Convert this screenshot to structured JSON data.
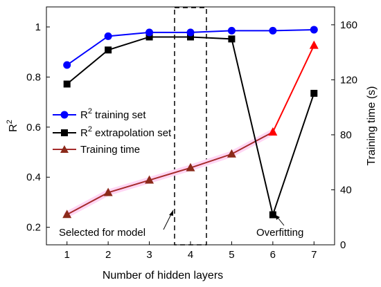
{
  "chart_data": {
    "type": "line",
    "x": [
      1,
      2,
      3,
      4,
      5,
      6,
      7
    ],
    "xlabel": "Number of hidden layers",
    "ylabel_left": "R",
    "ylabel_left_sup": "2",
    "ylabel_right": "Training time (s)",
    "xlim": [
      0.5,
      7.5
    ],
    "ylim_left": [
      0.13,
      1.08
    ],
    "ylim_right": [
      0,
      173
    ],
    "xticks": [
      1,
      2,
      3,
      4,
      5,
      6,
      7
    ],
    "yticks_left": [
      0.2,
      0.4,
      0.6,
      0.8,
      1
    ],
    "yticks_left_labels": [
      "0.2",
      "0.4",
      "0.6",
      "0.8",
      "1"
    ],
    "yticks_right": [
      0,
      40,
      80,
      120,
      160
    ],
    "yticks_right_labels": [
      "0",
      "40",
      "80",
      "120",
      "160"
    ],
    "series": [
      {
        "name_prefix": "R",
        "name_sup": "2",
        "name_suffix": " training set",
        "axis": "left",
        "color": "#0000ff",
        "marker": "circle",
        "values": [
          0.848,
          0.963,
          0.978,
          0.978,
          0.985,
          0.985,
          0.989
        ]
      },
      {
        "name_prefix": "R",
        "name_sup": "2",
        "name_suffix": " extrapolation set",
        "axis": "left",
        "color": "#000000",
        "marker": "square",
        "values": [
          0.772,
          0.908,
          0.96,
          0.96,
          0.952,
          0.25,
          0.735
        ]
      },
      {
        "name_prefix": "Training time",
        "name_sup": "",
        "name_suffix": "",
        "axis": "right",
        "color": "#a52a2a",
        "marker": "triangle",
        "values": [
          22,
          38,
          47,
          56,
          66,
          82,
          145
        ]
      }
    ],
    "highlight_x": 4,
    "annotations": {
      "selected": "Selected for model",
      "overfitting": "Overfitting"
    },
    "legend_position": "middle-left",
    "grid": false
  }
}
